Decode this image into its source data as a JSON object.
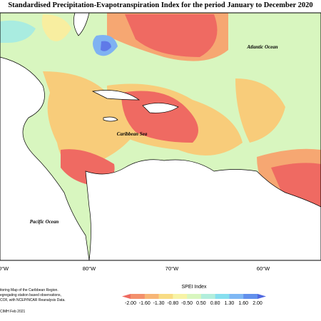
{
  "header": {
    "title": "Standardised Precipitation-Evapotranspiration Index for the period January to December 2020"
  },
  "map": {
    "labels": [
      "Atlantic Ocean",
      "Caribbean Sea",
      "Pacific Ocean"
    ],
    "longitudes": [
      "0°W",
      "80°W",
      "70°W",
      "60°W"
    ]
  },
  "legend": {
    "title": "SPEI Index",
    "ticks": [
      "-2.00",
      "-1.60",
      "-1.30",
      "-0.80",
      "-0.50",
      "0.50",
      "0.80",
      "1.30",
      "1.60",
      "2.00"
    ]
  },
  "footer": {
    "lines": [
      "itoring Map of the Caribbean Region.",
      "egregating station based observations,",
      "COF, with NCEP/NCAR Reanalysis Data.",
      "CIMH Feb 2021"
    ]
  }
}
